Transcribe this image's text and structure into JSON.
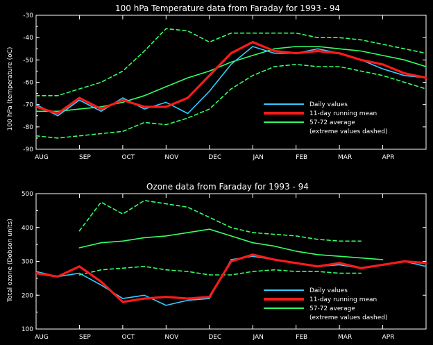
{
  "colors": {
    "background": "#000000",
    "axes": "#ffffff",
    "daily": "#33ccff",
    "mean": "#ff1a1a",
    "average": "#33ff66"
  },
  "legend": {
    "daily": "Daily values",
    "mean": "11-day running mean",
    "average": "57-72 average",
    "extreme": "(extreme values dashed)",
    "placement": "bottom-right"
  },
  "chart_data": [
    {
      "type": "line",
      "title": "100 hPa Temperature data from Faraday for 1993 - 94",
      "xlabel": "",
      "ylabel": "100 hPa (temperature (oC)",
      "ylim": [
        -90,
        -30
      ],
      "yticks": [
        "-30",
        "-40",
        "-50",
        "-60",
        "-70",
        "-80",
        "-90"
      ],
      "months": [
        "AUG",
        "SEP",
        "OCT",
        "NOV",
        "DEC",
        "JAN",
        "FEB",
        "MAR",
        "APR"
      ],
      "x_unit": "months from start of August 1993",
      "x": [
        0,
        0.5,
        1,
        1.5,
        2,
        2.5,
        3,
        3.5,
        4,
        4.5,
        5,
        5.5,
        6,
        6.5,
        7,
        7.5,
        8,
        8.5,
        9
      ],
      "series": [
        {
          "name": "Daily values",
          "style": "daily",
          "values": [
            -70,
            -75,
            -68,
            -73,
            -67,
            -72,
            -69,
            -74,
            -64,
            -52,
            -44,
            -47,
            -47,
            -45,
            -47,
            -50,
            -54,
            -57,
            -58
          ]
        },
        {
          "name": "11-day running mean",
          "style": "mean",
          "values": [
            -71,
            -74,
            -67,
            -72,
            -68,
            -71,
            -71,
            -67,
            -57,
            -47,
            -42,
            -46,
            -47,
            -46,
            -47,
            -50,
            -52,
            -56,
            -58
          ]
        },
        {
          "name": "57-72 average",
          "style": "average",
          "values": [
            -73,
            -73,
            -72,
            -71,
            -69,
            -66,
            -62,
            -58,
            -55,
            -51,
            -48,
            -45,
            -44,
            -44,
            -45,
            -46,
            -48,
            -50,
            -53
          ]
        },
        {
          "name": "extreme high",
          "style": "extreme",
          "values": [
            -66,
            -66,
            -63,
            -60,
            -55,
            -46,
            -36,
            -37,
            -42,
            -38,
            -38,
            -38,
            -38,
            -40,
            -40,
            -41,
            -43,
            -45,
            -47
          ]
        },
        {
          "name": "extreme low",
          "style": "extreme",
          "values": [
            -84,
            -85,
            -84,
            -83,
            -82,
            -78,
            -79,
            -76,
            -72,
            -63,
            -57,
            -53,
            -52,
            -53,
            -53,
            -55,
            -57,
            -60,
            -63
          ]
        }
      ]
    },
    {
      "type": "line",
      "title": "Ozone data from Faraday for 1993 - 94",
      "xlabel": "",
      "ylabel": "Total ozone (Dobson units)",
      "ylim": [
        100,
        500
      ],
      "yticks": [
        "500",
        "400",
        "300",
        "200",
        "100"
      ],
      "months": [
        "AUG",
        "SEP",
        "OCT",
        "NOV",
        "DEC",
        "JAN",
        "FEB",
        "MAR",
        "APR"
      ],
      "x_unit": "months from start of August 1993",
      "x": [
        0,
        0.5,
        1,
        1.5,
        2,
        2.5,
        3,
        3.5,
        4,
        4.5,
        5,
        5.5,
        6,
        6.5,
        7,
        7.5,
        8,
        8.5,
        9
      ],
      "series": [
        {
          "name": "Daily values",
          "style": "daily",
          "values": [
            270,
            255,
            265,
            230,
            190,
            200,
            170,
            185,
            190,
            305,
            315,
            305,
            295,
            285,
            290,
            280,
            290,
            300,
            285
          ]
        },
        {
          "name": "11-day running mean",
          "style": "mean",
          "values": [
            265,
            255,
            285,
            240,
            180,
            190,
            195,
            190,
            195,
            300,
            320,
            305,
            295,
            285,
            295,
            280,
            290,
            300,
            295
          ]
        },
        {
          "name": "57-72 average",
          "style": "average",
          "values": [
            null,
            null,
            340,
            355,
            360,
            370,
            375,
            385,
            395,
            375,
            355,
            345,
            330,
            320,
            315,
            310,
            305,
            null,
            null
          ]
        },
        {
          "name": "extreme high",
          "style": "extreme",
          "values": [
            null,
            null,
            390,
            475,
            440,
            480,
            470,
            460,
            430,
            400,
            385,
            380,
            375,
            365,
            360,
            360,
            null,
            null,
            null
          ]
        },
        {
          "name": "extreme low",
          "style": "extreme",
          "values": [
            null,
            null,
            260,
            275,
            280,
            285,
            275,
            270,
            260,
            260,
            270,
            275,
            270,
            270,
            265,
            265,
            null,
            null,
            null
          ]
        }
      ]
    }
  ]
}
